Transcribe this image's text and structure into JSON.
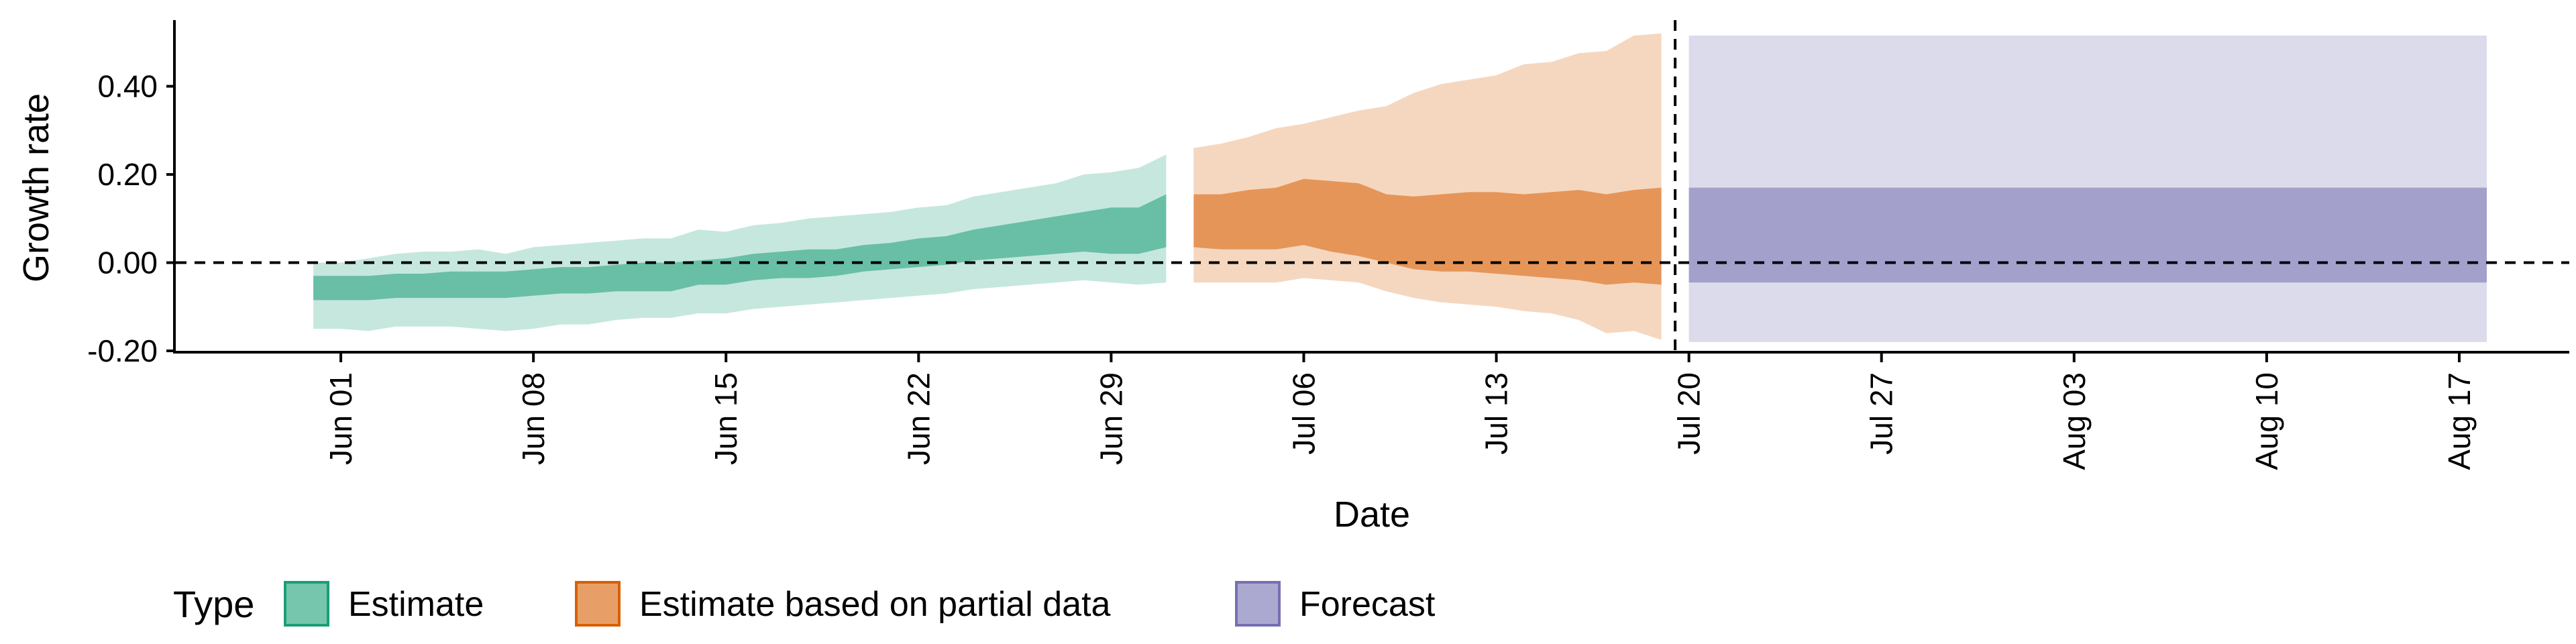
{
  "chart_data": {
    "type": "area",
    "title": "",
    "xlabel": "Date",
    "ylabel": "Growth rate",
    "x_axis": {
      "type": "date",
      "range": [
        "2021-05-26",
        "2021-08-21"
      ],
      "ticks": [
        {
          "date": "2021-06-01",
          "label": "Jun 01"
        },
        {
          "date": "2021-06-08",
          "label": "Jun 08"
        },
        {
          "date": "2021-06-15",
          "label": "Jun 15"
        },
        {
          "date": "2021-06-22",
          "label": "Jun 22"
        },
        {
          "date": "2021-06-29",
          "label": "Jun 29"
        },
        {
          "date": "2021-07-06",
          "label": "Jul 06"
        },
        {
          "date": "2021-07-13",
          "label": "Jul 13"
        },
        {
          "date": "2021-07-20",
          "label": "Jul 20"
        },
        {
          "date": "2021-07-27",
          "label": "Jul 27"
        },
        {
          "date": "2021-08-03",
          "label": "Aug 03"
        },
        {
          "date": "2021-08-10",
          "label": "Aug 10"
        },
        {
          "date": "2021-08-17",
          "label": "Aug 17"
        }
      ]
    },
    "y_axis": {
      "range": [
        -0.2,
        0.55
      ],
      "ticks": [
        {
          "value": -0.2,
          "label": "-0.20"
        },
        {
          "value": 0.0,
          "label": "0.00"
        },
        {
          "value": 0.2,
          "label": "0.20"
        },
        {
          "value": 0.4,
          "label": "0.40"
        }
      ]
    },
    "grid": false,
    "reference_lines": {
      "horizontal_y": 0.0,
      "vertical_date": "2021-07-19",
      "style": "dashed"
    },
    "legend": {
      "title": "Type",
      "placement": "bottom",
      "entries": [
        {
          "label": "Estimate",
          "color": "#1B9E77"
        },
        {
          "label": "Estimate based on partial data",
          "color": "#D95F02"
        },
        {
          "label": "Forecast",
          "color": "#7570B3"
        }
      ]
    },
    "series": [
      {
        "type_label": "Estimate",
        "color": "#1B9E77",
        "points": [
          {
            "date": "2021-05-31",
            "lower90": -0.15,
            "lower50": -0.085,
            "upper50": -0.03,
            "upper90": 0.0
          },
          {
            "date": "2021-06-01",
            "lower90": -0.15,
            "lower50": -0.085,
            "upper50": -0.03,
            "upper90": 0.0
          },
          {
            "date": "2021-06-02",
            "lower90": -0.155,
            "lower50": -0.085,
            "upper50": -0.03,
            "upper90": 0.01
          },
          {
            "date": "2021-06-03",
            "lower90": -0.145,
            "lower50": -0.08,
            "upper50": -0.025,
            "upper90": 0.02
          },
          {
            "date": "2021-06-04",
            "lower90": -0.145,
            "lower50": -0.08,
            "upper50": -0.025,
            "upper90": 0.025
          },
          {
            "date": "2021-06-05",
            "lower90": -0.145,
            "lower50": -0.08,
            "upper50": -0.02,
            "upper90": 0.025
          },
          {
            "date": "2021-06-06",
            "lower90": -0.15,
            "lower50": -0.08,
            "upper50": -0.02,
            "upper90": 0.03
          },
          {
            "date": "2021-06-07",
            "lower90": -0.155,
            "lower50": -0.08,
            "upper50": -0.02,
            "upper90": 0.02
          },
          {
            "date": "2021-06-08",
            "lower90": -0.15,
            "lower50": -0.075,
            "upper50": -0.015,
            "upper90": 0.035
          },
          {
            "date": "2021-06-09",
            "lower90": -0.14,
            "lower50": -0.07,
            "upper50": -0.01,
            "upper90": 0.04
          },
          {
            "date": "2021-06-10",
            "lower90": -0.14,
            "lower50": -0.07,
            "upper50": -0.01,
            "upper90": 0.045
          },
          {
            "date": "2021-06-11",
            "lower90": -0.13,
            "lower50": -0.065,
            "upper50": -0.005,
            "upper90": 0.05
          },
          {
            "date": "2021-06-12",
            "lower90": -0.125,
            "lower50": -0.065,
            "upper50": 0.0,
            "upper90": 0.055
          },
          {
            "date": "2021-06-13",
            "lower90": -0.125,
            "lower50": -0.065,
            "upper50": 0.0,
            "upper90": 0.055
          },
          {
            "date": "2021-06-14",
            "lower90": -0.115,
            "lower50": -0.05,
            "upper50": 0.005,
            "upper90": 0.075
          },
          {
            "date": "2021-06-15",
            "lower90": -0.115,
            "lower50": -0.05,
            "upper50": 0.01,
            "upper90": 0.07
          },
          {
            "date": "2021-06-16",
            "lower90": -0.105,
            "lower50": -0.04,
            "upper50": 0.02,
            "upper90": 0.085
          },
          {
            "date": "2021-06-17",
            "lower90": -0.1,
            "lower50": -0.035,
            "upper50": 0.025,
            "upper90": 0.09
          },
          {
            "date": "2021-06-18",
            "lower90": -0.095,
            "lower50": -0.035,
            "upper50": 0.03,
            "upper90": 0.1
          },
          {
            "date": "2021-06-19",
            "lower90": -0.09,
            "lower50": -0.03,
            "upper50": 0.03,
            "upper90": 0.105
          },
          {
            "date": "2021-06-20",
            "lower90": -0.085,
            "lower50": -0.02,
            "upper50": 0.04,
            "upper90": 0.11
          },
          {
            "date": "2021-06-21",
            "lower90": -0.08,
            "lower50": -0.015,
            "upper50": 0.045,
            "upper90": 0.115
          },
          {
            "date": "2021-06-22",
            "lower90": -0.075,
            "lower50": -0.01,
            "upper50": 0.055,
            "upper90": 0.125
          },
          {
            "date": "2021-06-23",
            "lower90": -0.07,
            "lower50": -0.005,
            "upper50": 0.06,
            "upper90": 0.13
          },
          {
            "date": "2021-06-24",
            "lower90": -0.06,
            "lower50": 0.005,
            "upper50": 0.075,
            "upper90": 0.15
          },
          {
            "date": "2021-06-25",
            "lower90": -0.055,
            "lower50": 0.01,
            "upper50": 0.085,
            "upper90": 0.16
          },
          {
            "date": "2021-06-26",
            "lower90": -0.05,
            "lower50": 0.015,
            "upper50": 0.095,
            "upper90": 0.17
          },
          {
            "date": "2021-06-27",
            "lower90": -0.045,
            "lower50": 0.02,
            "upper50": 0.105,
            "upper90": 0.18
          },
          {
            "date": "2021-06-28",
            "lower90": -0.04,
            "lower50": 0.025,
            "upper50": 0.115,
            "upper90": 0.2
          },
          {
            "date": "2021-06-29",
            "lower90": -0.045,
            "lower50": 0.02,
            "upper50": 0.125,
            "upper90": 0.205
          },
          {
            "date": "2021-06-30",
            "lower90": -0.05,
            "lower50": 0.02,
            "upper50": 0.125,
            "upper90": 0.215
          },
          {
            "date": "2021-07-01",
            "lower90": -0.045,
            "lower50": 0.035,
            "upper50": 0.155,
            "upper90": 0.245
          }
        ]
      },
      {
        "type_label": "Estimate based on partial data",
        "color": "#D95F02",
        "points": [
          {
            "date": "2021-07-02",
            "lower90": -0.045,
            "lower50": 0.035,
            "upper50": 0.155,
            "upper90": 0.26
          },
          {
            "date": "2021-07-03",
            "lower90": -0.045,
            "lower50": 0.03,
            "upper50": 0.155,
            "upper90": 0.27
          },
          {
            "date": "2021-07-04",
            "lower90": -0.045,
            "lower50": 0.03,
            "upper50": 0.165,
            "upper90": 0.285
          },
          {
            "date": "2021-07-05",
            "lower90": -0.045,
            "lower50": 0.03,
            "upper50": 0.17,
            "upper90": 0.305
          },
          {
            "date": "2021-07-06",
            "lower90": -0.035,
            "lower50": 0.04,
            "upper50": 0.19,
            "upper90": 0.315
          },
          {
            "date": "2021-07-07",
            "lower90": -0.04,
            "lower50": 0.025,
            "upper50": 0.185,
            "upper90": 0.33
          },
          {
            "date": "2021-07-08",
            "lower90": -0.045,
            "lower50": 0.015,
            "upper50": 0.18,
            "upper90": 0.345
          },
          {
            "date": "2021-07-09",
            "lower90": -0.065,
            "lower50": 0.0,
            "upper50": 0.155,
            "upper90": 0.355
          },
          {
            "date": "2021-07-10",
            "lower90": -0.08,
            "lower50": -0.015,
            "upper50": 0.15,
            "upper90": 0.385
          },
          {
            "date": "2021-07-11",
            "lower90": -0.09,
            "lower50": -0.02,
            "upper50": 0.155,
            "upper90": 0.405
          },
          {
            "date": "2021-07-12",
            "lower90": -0.095,
            "lower50": -0.02,
            "upper50": 0.16,
            "upper90": 0.415
          },
          {
            "date": "2021-07-13",
            "lower90": -0.1,
            "lower50": -0.025,
            "upper50": 0.16,
            "upper90": 0.425
          },
          {
            "date": "2021-07-14",
            "lower90": -0.11,
            "lower50": -0.03,
            "upper50": 0.155,
            "upper90": 0.45
          },
          {
            "date": "2021-07-15",
            "lower90": -0.115,
            "lower50": -0.035,
            "upper50": 0.16,
            "upper90": 0.455
          },
          {
            "date": "2021-07-16",
            "lower90": -0.13,
            "lower50": -0.04,
            "upper50": 0.165,
            "upper90": 0.475
          },
          {
            "date": "2021-07-17",
            "lower90": -0.16,
            "lower50": -0.05,
            "upper50": 0.155,
            "upper90": 0.48
          },
          {
            "date": "2021-07-18",
            "lower90": -0.155,
            "lower50": -0.045,
            "upper50": 0.165,
            "upper90": 0.515
          },
          {
            "date": "2021-07-19",
            "lower90": -0.175,
            "lower50": -0.05,
            "upper50": 0.17,
            "upper90": 0.52
          }
        ]
      },
      {
        "type_label": "Forecast",
        "color": "#7570B3",
        "points": [
          {
            "date": "2021-07-20",
            "lower90": -0.18,
            "lower50": -0.045,
            "upper50": 0.17,
            "upper90": 0.515
          },
          {
            "date": "2021-08-18",
            "lower90": -0.18,
            "lower50": -0.045,
            "upper50": 0.17,
            "upper90": 0.515
          }
        ]
      }
    ]
  }
}
